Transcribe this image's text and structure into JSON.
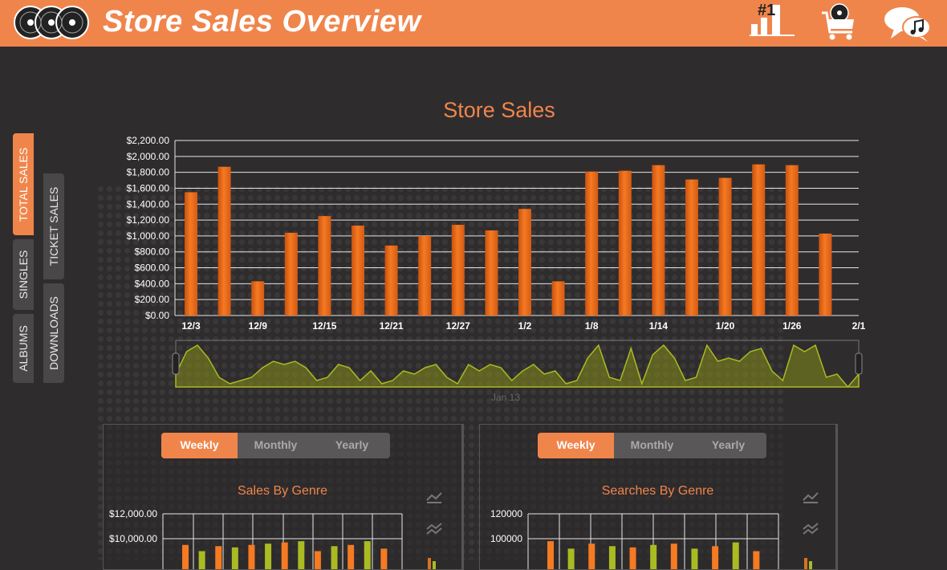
{
  "app": {
    "title": "Store Sales Overview"
  },
  "colors": {
    "accent": "#f0854b",
    "bar": "#f57a22",
    "navigator": "#aabb22",
    "background": "#2f2c2e"
  },
  "header_icons": [
    "vinyl-records-logo-icon",
    "top-chart-number-one-icon",
    "shopping-cart-icon",
    "music-chat-icon"
  ],
  "header_chart_label": "#1",
  "side_tabs": {
    "left": [
      "TOTAL SALES",
      "SINGLES",
      "ALBUMS"
    ],
    "right": [
      "TICKET SALES",
      "DOWNLOADS"
    ],
    "active": "TOTAL SALES"
  },
  "chart_data": [
    {
      "type": "bar",
      "title": "Store Sales",
      "xlabel": "",
      "ylabel": "",
      "ylim": [
        0,
        2200
      ],
      "y_ticks": [
        "$0.00",
        "$200.00",
        "$400.00",
        "$600.00",
        "$800.00",
        "$1,000.00",
        "$1,200.00",
        "$1,400.00",
        "$1,600.00",
        "$1,800.00",
        "$2,000.00",
        "$2,200.00"
      ],
      "x_ticks": [
        "12/3",
        "12/9",
        "12/15",
        "12/21",
        "12/27",
        "1/2",
        "1/8",
        "1/14",
        "1/20",
        "1/26",
        "2/1"
      ],
      "values": [
        1550,
        1870,
        430,
        1040,
        1250,
        1130,
        880,
        1000,
        1140,
        1070,
        1340,
        430,
        1810,
        1820,
        1890,
        1710,
        1730,
        1900,
        1890,
        1030
      ],
      "grid": true,
      "legend": "none"
    },
    {
      "type": "area",
      "title": "",
      "axis_label": "Jan 13",
      "values": [
        20,
        55,
        65,
        45,
        15,
        5,
        10,
        15,
        30,
        40,
        35,
        40,
        30,
        10,
        15,
        35,
        30,
        10,
        25,
        5,
        10,
        25,
        20,
        30,
        35,
        15,
        5,
        35,
        25,
        35,
        30,
        10,
        25,
        35,
        20,
        25,
        5,
        10,
        45,
        65,
        15,
        10,
        60,
        5,
        50,
        65,
        45,
        10,
        15,
        65,
        40,
        45,
        40,
        55,
        60,
        25,
        10,
        65,
        55,
        65,
        15,
        20,
        0,
        20
      ]
    },
    {
      "type": "bar",
      "title": "Sales By Genre",
      "y_ticks_visible": [
        "$10,000.00",
        "$12,000.00"
      ],
      "ylim": [
        0,
        12000
      ],
      "visible_values": [
        9500,
        9000,
        9400,
        9300,
        9500,
        9600,
        9700,
        9800,
        9000,
        9400,
        9500,
        9800,
        9200
      ]
    },
    {
      "type": "bar",
      "title": "Searches By Genre",
      "y_ticks_visible": [
        "100000",
        "120000"
      ],
      "ylim": [
        0,
        120000
      ],
      "visible_values": [
        98000,
        92000,
        96000,
        94000,
        93000,
        95000,
        96000,
        92000,
        94000,
        97000,
        90000
      ]
    }
  ],
  "panels": [
    {
      "segments": [
        "Weekly",
        "Monthly",
        "Yearly"
      ],
      "selected": "Weekly",
      "title": "Sales By Genre"
    },
    {
      "segments": [
        "Weekly",
        "Monthly",
        "Yearly"
      ],
      "selected": "Weekly",
      "title": "Searches By Genre"
    }
  ]
}
